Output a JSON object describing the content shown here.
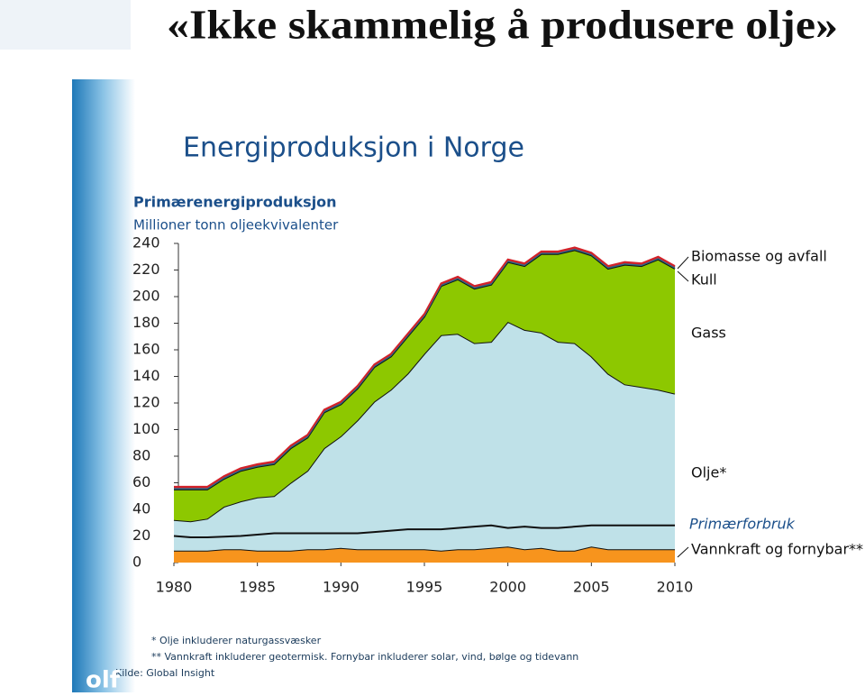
{
  "headline": "«Ikke skammelig å produsere olje»",
  "logo": "olf",
  "chart_data": {
    "type": "area",
    "title": "Energiproduksjon i Norge",
    "subtitle": "Primærenergiproduksjon",
    "y_label": "Millioner tonn oljeekvivalenter",
    "x": [
      1980,
      1981,
      1982,
      1983,
      1984,
      1985,
      1986,
      1987,
      1988,
      1989,
      1990,
      1991,
      1992,
      1993,
      1994,
      1995,
      1996,
      1997,
      1998,
      1999,
      2000,
      2001,
      2002,
      2003,
      2004,
      2005,
      2006,
      2007,
      2008,
      2009,
      2010
    ],
    "series": [
      {
        "name": "Vannkraft og fornybar**",
        "color": "#f7941d",
        "style": "area",
        "values": [
          9,
          9,
          9,
          10,
          10,
          9,
          9,
          9,
          10,
          10,
          11,
          10,
          10,
          10,
          10,
          10,
          9,
          10,
          10,
          11,
          12,
          10,
          11,
          9,
          9,
          12,
          10,
          10,
          10,
          10,
          10
        ]
      },
      {
        "name": "Olje*",
        "color": "#bfe1e8",
        "style": "area",
        "values": [
          23,
          22,
          24,
          32,
          36,
          40,
          41,
          51,
          59,
          76,
          84,
          97,
          111,
          120,
          132,
          147,
          162,
          162,
          155,
          155,
          169,
          165,
          162,
          157,
          156,
          143,
          132,
          124,
          122,
          120,
          117
        ]
      },
      {
        "name": "Gass",
        "color": "#8dc800",
        "style": "area",
        "values": [
          23,
          24,
          22,
          21,
          23,
          23,
          24,
          26,
          25,
          27,
          24,
          24,
          26,
          25,
          28,
          28,
          37,
          41,
          41,
          43,
          45,
          48,
          59,
          66,
          70,
          76,
          79,
          90,
          91,
          98,
          94
        ]
      },
      {
        "name": "Kull",
        "color": "#2a6b8a",
        "style": "area",
        "values": [
          1,
          1,
          1,
          1,
          1,
          1,
          1,
          1,
          1,
          1,
          1,
          1,
          1,
          1,
          1,
          1,
          1,
          1,
          1,
          1,
          1,
          1,
          1,
          1,
          1,
          1,
          1,
          1,
          1,
          1,
          1
        ]
      },
      {
        "name": "Biomasse og avfall",
        "color": "#d2232a",
        "style": "area",
        "values": [
          1,
          1,
          1,
          1,
          1,
          1,
          1,
          1,
          1,
          1,
          1,
          1,
          1,
          1,
          1,
          1,
          1,
          1,
          1,
          1,
          1,
          1,
          1,
          1,
          1,
          1,
          1,
          1,
          1,
          1,
          1
        ]
      },
      {
        "name": "Primærforbruk",
        "color": "#111111",
        "style": "line",
        "values": [
          20,
          19,
          19,
          19.5,
          20,
          21,
          22,
          22,
          22,
          22,
          22,
          22,
          23,
          24,
          25,
          25,
          25,
          26,
          27,
          28,
          26,
          27,
          26,
          26,
          27,
          28,
          28,
          28,
          28,
          28,
          28
        ]
      }
    ],
    "xlim": [
      1980,
      2010
    ],
    "xticks": [
      1980,
      1985,
      1990,
      1995,
      2000,
      2005,
      2010
    ],
    "ylim": [
      0,
      240
    ],
    "yticks": [
      0,
      20,
      40,
      60,
      80,
      100,
      120,
      140,
      160,
      180,
      200,
      220,
      240
    ],
    "notes": [
      "* Olje inkluderer naturgassvæsker",
      "** Vannkraft inkluderer geotermisk. Fornybar inkluderer solar, vind, bølge og tidevann",
      "Kilde: Global Insight"
    ]
  }
}
